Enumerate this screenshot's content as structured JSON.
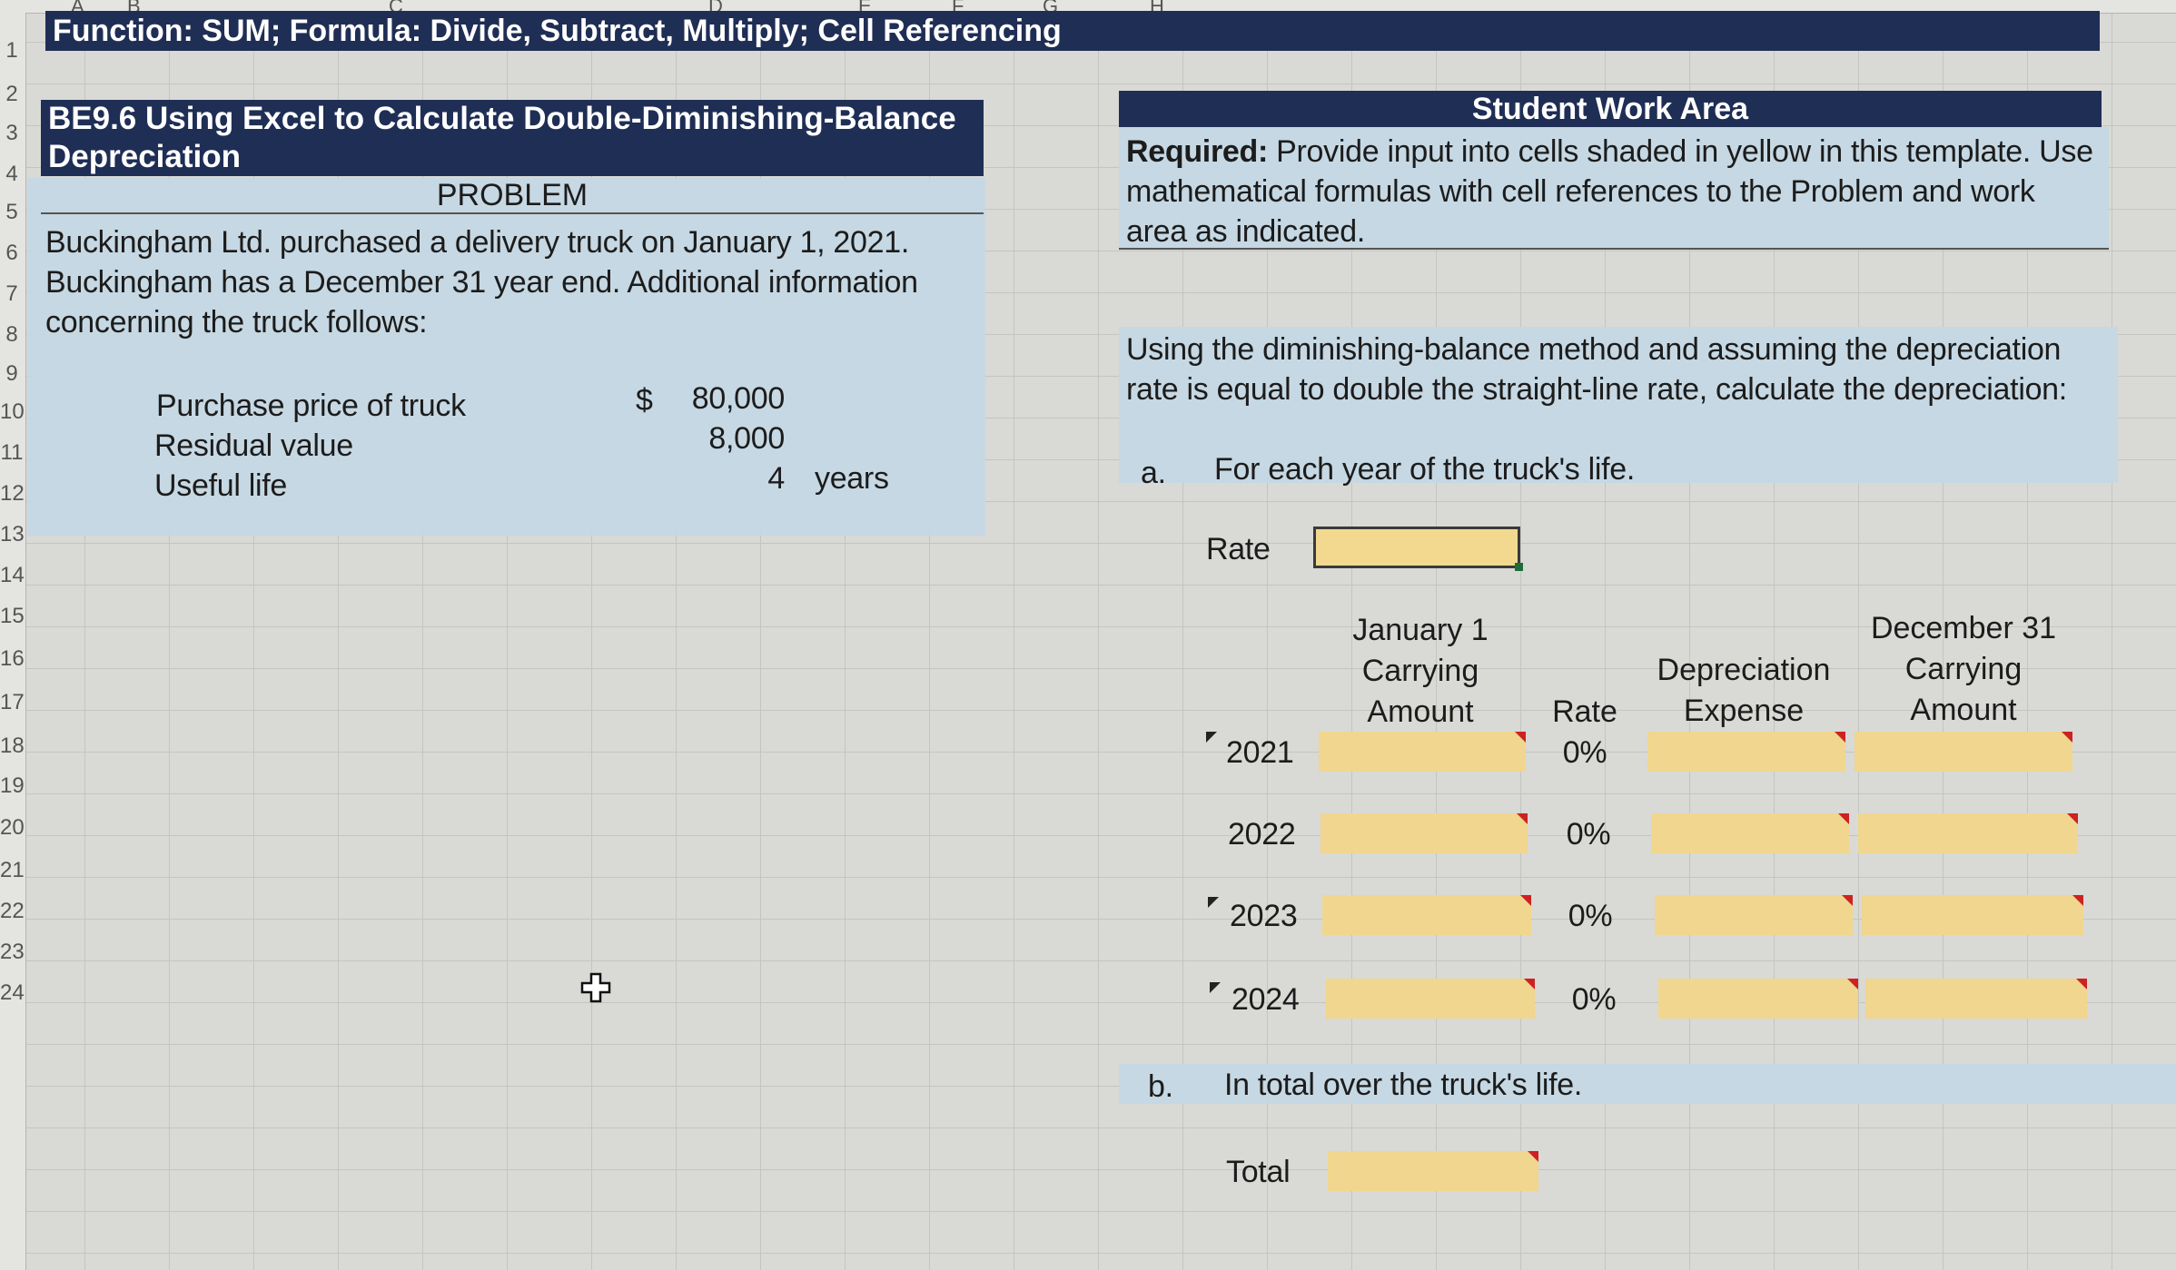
{
  "column_letters": [
    "A",
    "B",
    "C",
    "D",
    "E",
    "F",
    "G",
    "H"
  ],
  "row_numbers": [
    "1",
    "2",
    "3",
    "4",
    "5",
    "6",
    "7",
    "8",
    "9",
    "10",
    "11",
    "12",
    "13",
    "14",
    "15",
    "16",
    "17",
    "18",
    "19",
    "20",
    "21",
    "22",
    "23",
    "24"
  ],
  "title": "Function: SUM; Formula: Divide, Subtract, Multiply; Cell Referencing",
  "problem": {
    "heading": "BE9.6 Using Excel to Calculate Double-Diminishing-Balance Depreciation",
    "label": "PROBLEM",
    "lines": [
      "Buckingham Ltd. purchased a delivery truck on January 1, 2021.",
      "Buckingham has a December 31 year end. Additional information",
      "concerning the truck follows:"
    ],
    "items": [
      {
        "label": "Purchase price of truck",
        "currency": "$",
        "value": "80,000",
        "unit": ""
      },
      {
        "label": "Residual value",
        "currency": "",
        "value": "8,000",
        "unit": ""
      },
      {
        "label": "Useful life",
        "currency": "",
        "value": "4",
        "unit": "years"
      }
    ]
  },
  "student_work": {
    "heading": "Student Work Area",
    "required_bold": "Required:",
    "required_lines": [
      "Provide input into cells shaded in yellow in this template. Use",
      "mathematical formulas with cell references to the Problem and work",
      "area as indicated."
    ],
    "instruction_lines": [
      "Using the diminishing-balance method and assuming the depreciation",
      "rate is equal to double the straight-line rate, calculate the depreciation:"
    ],
    "part_a_letter": "a.",
    "part_a_text": "For each year of the truck's life.",
    "rate_label": "Rate",
    "table_headers": {
      "jan1": [
        "January 1",
        "Carrying",
        "Amount"
      ],
      "rate": "Rate",
      "dep": [
        "Depreciation",
        "Expense"
      ],
      "dec31": [
        "December 31",
        "Carrying",
        "Amount"
      ]
    },
    "years": [
      {
        "year": "2021",
        "rate": "0%"
      },
      {
        "year": "2022",
        "rate": "0%"
      },
      {
        "year": "2023",
        "rate": "0%"
      },
      {
        "year": "2024",
        "rate": "0%"
      }
    ],
    "part_b_letter": "b.",
    "part_b_text": "In total over the truck's life.",
    "total_label": "Total"
  }
}
